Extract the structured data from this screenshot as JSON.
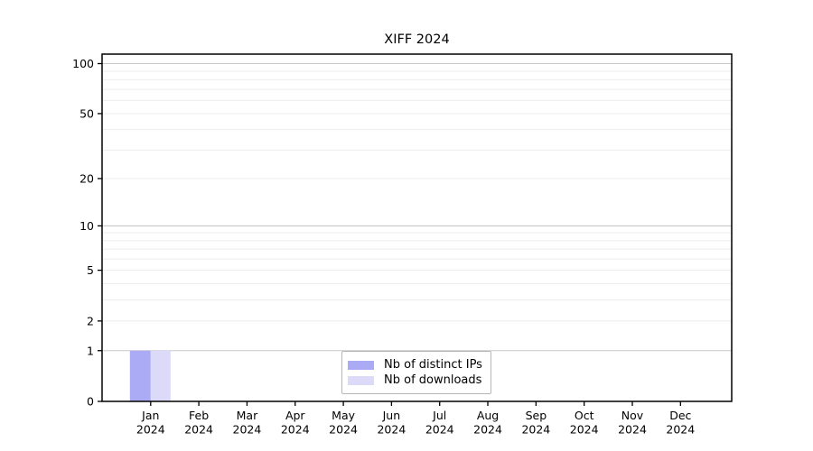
{
  "title": "XIFF 2024",
  "legend": {
    "items": [
      {
        "label": "Nb of distinct IPs",
        "color": "#abaaf5"
      },
      {
        "label": "Nb of downloads",
        "color": "#dbdaf9"
      }
    ]
  },
  "chart_data": {
    "type": "bar",
    "title": "XIFF 2024",
    "x_tick_months": [
      "Jan",
      "Feb",
      "Mar",
      "Apr",
      "May",
      "Jun",
      "Jul",
      "Aug",
      "Sep",
      "Oct",
      "Nov",
      "Dec"
    ],
    "x_tick_year": "2024",
    "series": [
      {
        "name": "Nb of distinct IPs",
        "color": "#abaaf5",
        "values": [
          1,
          0,
          0,
          0,
          0,
          0,
          0,
          0,
          0,
          0,
          0,
          0
        ]
      },
      {
        "name": "Nb of downloads",
        "color": "#dbdaf9",
        "values": [
          1,
          0,
          0,
          0,
          0,
          0,
          0,
          0,
          0,
          0,
          0,
          0
        ]
      }
    ],
    "y_scale": "log10(1+y)",
    "ylim": [
      0,
      100
    ],
    "y_ticks_labeled": [
      0,
      1,
      2,
      5,
      10,
      20,
      50,
      100
    ],
    "y_gridlines_major": [
      1,
      10,
      100
    ],
    "y_gridlines_minor": [
      2,
      3,
      4,
      5,
      6,
      7,
      8,
      9,
      20,
      30,
      40,
      50,
      60,
      70,
      80,
      90
    ],
    "grid": true,
    "legend_position": "inside-bottom-center"
  },
  "colors": {
    "bar_distinct_ips": "#abaaf5",
    "bar_downloads": "#dbdaf9",
    "grid_major": "#c8c8c8",
    "grid_minor": "#ededed",
    "frame": "#000000",
    "legend_border": "#b6b6b6",
    "background": "#ffffff",
    "text": "#000000"
  }
}
